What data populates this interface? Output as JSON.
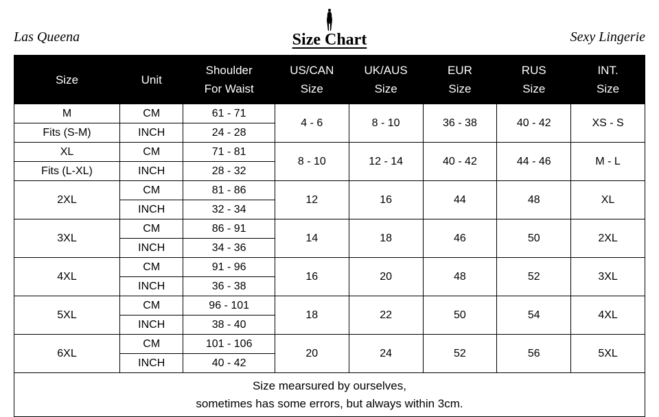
{
  "header": {
    "brand_left": "Las Queena",
    "brand_right": "Sexy Lingerie",
    "title": "Size Chart"
  },
  "table": {
    "columns": [
      "Size",
      "Unit",
      "Shoulder\nFor Waist",
      "US/CAN\nSize",
      "UK/AUS\nSize",
      "EUR\nSize",
      "RUS\nSize",
      "INT.\nSize"
    ],
    "col_widths_pct": [
      15,
      9,
      13,
      10.5,
      10.5,
      10.5,
      10.5,
      10.5
    ],
    "header_bg": "#000000",
    "header_color": "#ffffff",
    "border_color": "#000000",
    "font_size_body": 16,
    "font_size_header": 17,
    "groups": [
      {
        "size_rows": [
          "M",
          "Fits (S-M)"
        ],
        "unit": [
          "CM",
          "INCH"
        ],
        "waist": [
          "61 - 71",
          "24 - 28"
        ],
        "us": "4 - 6",
        "uk": "8 - 10",
        "eur": "36 - 38",
        "rus": "40 - 42",
        "int": "XS - S"
      },
      {
        "size_rows": [
          "XL",
          "Fits (L-XL)"
        ],
        "unit": [
          "CM",
          "INCH"
        ],
        "waist": [
          "71 - 81",
          "28 - 32"
        ],
        "us": "8 - 10",
        "uk": "12 - 14",
        "eur": "40 - 42",
        "rus": "44 - 46",
        "int": "M - L"
      },
      {
        "size_rows": [
          "2XL"
        ],
        "unit": [
          "CM",
          "INCH"
        ],
        "waist": [
          "81 - 86",
          "32 - 34"
        ],
        "us": "12",
        "uk": "16",
        "eur": "44",
        "rus": "48",
        "int": "XL"
      },
      {
        "size_rows": [
          "3XL"
        ],
        "unit": [
          "CM",
          "INCH"
        ],
        "waist": [
          "86 - 91",
          "34 - 36"
        ],
        "us": "14",
        "uk": "18",
        "eur": "46",
        "rus": "50",
        "int": "2XL"
      },
      {
        "size_rows": [
          "4XL"
        ],
        "unit": [
          "CM",
          "INCH"
        ],
        "waist": [
          "91 - 96",
          "36 - 38"
        ],
        "us": "16",
        "uk": "20",
        "eur": "48",
        "rus": "52",
        "int": "3XL"
      },
      {
        "size_rows": [
          "5XL"
        ],
        "unit": [
          "CM",
          "INCH"
        ],
        "waist": [
          "96 - 101",
          "38 - 40"
        ],
        "us": "18",
        "uk": "22",
        "eur": "50",
        "rus": "54",
        "int": "4XL"
      },
      {
        "size_rows": [
          "6XL"
        ],
        "unit": [
          "CM",
          "INCH"
        ],
        "waist": [
          "101 - 106",
          "40 - 42"
        ],
        "us": "20",
        "uk": "24",
        "eur": "52",
        "rus": "56",
        "int": "5XL"
      }
    ],
    "footnote": "Size mearsured by ourselves,\nsometimes has some errors, but always within 3cm."
  }
}
